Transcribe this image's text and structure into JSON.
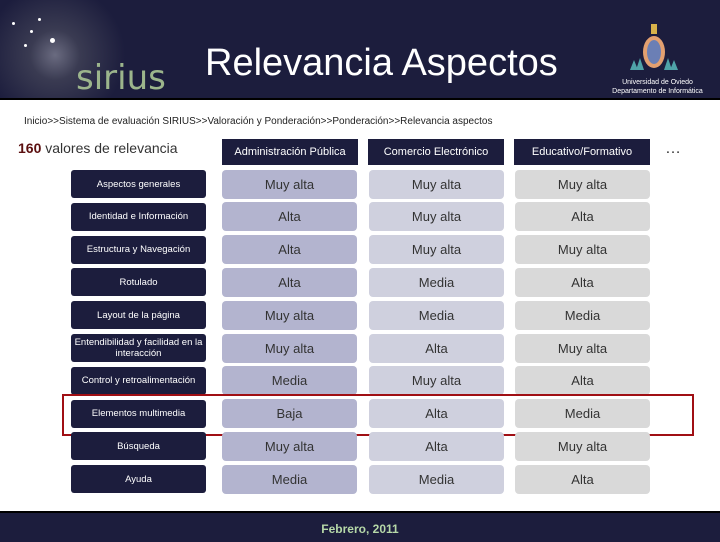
{
  "header": {
    "logo_text": "sirius",
    "title": "Relevancia Aspectos",
    "university": "Universidad de Oviedo",
    "department": "Departamento de Informática"
  },
  "breadcrumb": "Inicio>>Sistema de evaluación SIRIUS>>Valoración y Ponderación>>Ponderación>>Relevancia aspectos",
  "summary": {
    "count": "160",
    "label": " valores de relevancia"
  },
  "columns": [
    "Administración Pública",
    "Comercio Electrónico",
    "Educativo/Formativo"
  ],
  "more": "…",
  "colors": {
    "header_bg": "#1c1d3d",
    "col1": "#b3b4cf",
    "col2": "#cfd0de",
    "col3": "#d9d9d9",
    "highlight": "#a00f14",
    "footer_text": "#b6d8a8"
  },
  "rows": [
    {
      "label": "Aspectos generales",
      "values": [
        "Muy alta",
        "Muy alta",
        "Muy alta"
      ]
    },
    {
      "label": "Identidad e Información",
      "values": [
        "Alta",
        "Muy alta",
        "Alta"
      ]
    },
    {
      "label": "Estructura y Navegación",
      "values": [
        "Alta",
        "Muy alta",
        "Muy alta"
      ]
    },
    {
      "label": "Rotulado",
      "values": [
        "Alta",
        "Media",
        "Alta"
      ]
    },
    {
      "label": "Layout de la página",
      "values": [
        "Muy alta",
        "Media",
        "Media"
      ]
    },
    {
      "label": "Entendibilidad y facilidad en la interacción",
      "values": [
        "Muy alta",
        "Alta",
        "Muy alta"
      ]
    },
    {
      "label": "Control y retroalimentación",
      "values": [
        "Media",
        "Muy alta",
        "Alta"
      ]
    },
    {
      "label": "Elementos multimedia",
      "values": [
        "Baja",
        "Alta",
        "Media"
      ]
    },
    {
      "label": "Búsqueda",
      "values": [
        "Muy alta",
        "Alta",
        "Muy alta"
      ]
    },
    {
      "label": "Ayuda",
      "values": [
        "Media",
        "Media",
        "Alta"
      ]
    }
  ],
  "highlighted_row": "Elementos multimedia",
  "footer": "Febrero, 2011"
}
